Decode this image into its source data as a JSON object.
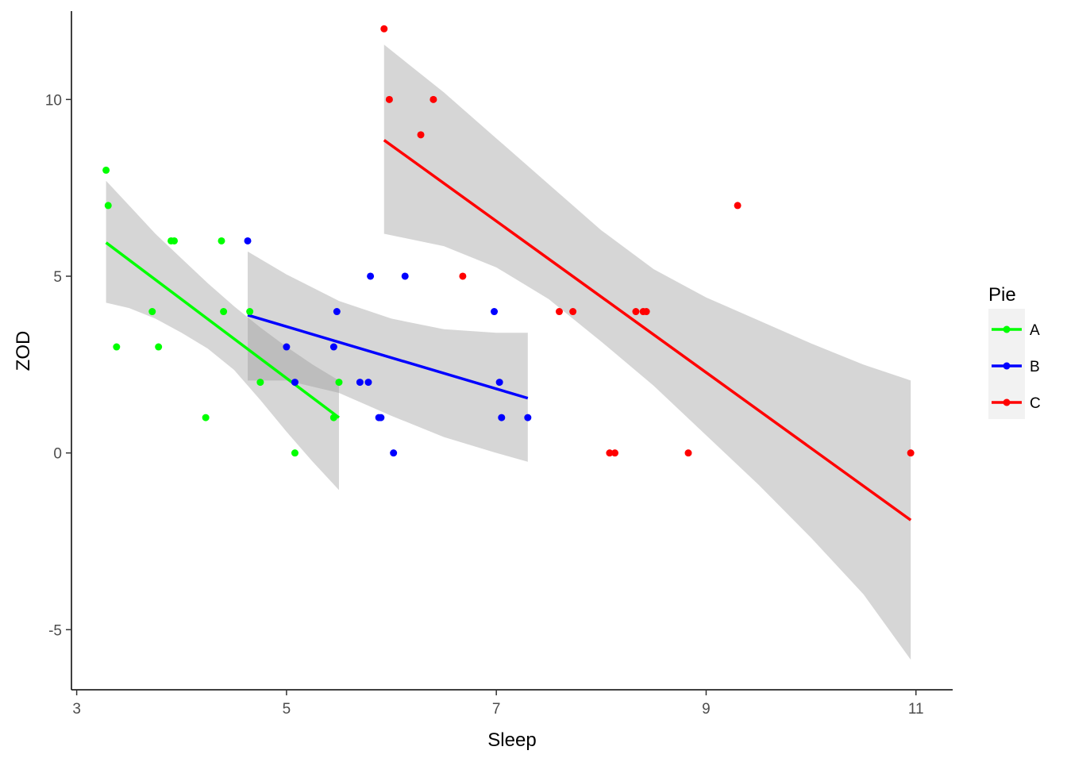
{
  "chart_data": {
    "type": "scatter",
    "title": "",
    "xlabel": "Sleep",
    "ylabel": "ZOD",
    "xlim": [
      2.95,
      11.35
    ],
    "ylim": [
      -6.7,
      12.5
    ],
    "xticks": [
      "3",
      "5",
      "7",
      "9",
      "11"
    ],
    "yticks": [
      "-5",
      "0",
      "5",
      "10"
    ],
    "grid": false,
    "legend": {
      "title": "Pie",
      "position": "right"
    },
    "smoothing": "linear fit with confidence band",
    "band_color": "#999999",
    "series": [
      {
        "name": "A",
        "color": "#00ff00",
        "points": [
          [
            3.28,
            8
          ],
          [
            3.3,
            7
          ],
          [
            3.38,
            3
          ],
          [
            3.72,
            4
          ],
          [
            3.78,
            3
          ],
          [
            3.9,
            6
          ],
          [
            3.93,
            6
          ],
          [
            4.23,
            1
          ],
          [
            4.38,
            6
          ],
          [
            4.4,
            4
          ],
          [
            4.65,
            4
          ],
          [
            4.75,
            2
          ],
          [
            5.08,
            0
          ],
          [
            5.45,
            1
          ],
          [
            5.5,
            2
          ]
        ],
        "fit": {
          "x": [
            3.28,
            5.5
          ],
          "y": [
            5.95,
            1.0
          ]
        },
        "band": {
          "x": [
            3.28,
            3.5,
            3.75,
            4.0,
            4.25,
            4.5,
            4.75,
            5.0,
            5.25,
            5.5
          ],
          "upper": [
            7.7,
            7.0,
            6.2,
            5.5,
            4.8,
            4.15,
            3.55,
            3.0,
            2.5,
            2.05
          ],
          "lower": [
            4.25,
            4.1,
            3.8,
            3.4,
            2.95,
            2.35,
            1.5,
            0.6,
            -0.25,
            -1.05
          ]
        }
      },
      {
        "name": "B",
        "color": "#0000ff",
        "points": [
          [
            4.63,
            6
          ],
          [
            5.0,
            3
          ],
          [
            5.08,
            2
          ],
          [
            5.45,
            3
          ],
          [
            5.48,
            4
          ],
          [
            5.7,
            2
          ],
          [
            5.78,
            2
          ],
          [
            5.8,
            5
          ],
          [
            5.88,
            1
          ],
          [
            5.9,
            1
          ],
          [
            6.02,
            0
          ],
          [
            6.13,
            5
          ],
          [
            6.98,
            4
          ],
          [
            7.03,
            2
          ],
          [
            7.05,
            1
          ],
          [
            7.3,
            1
          ]
        ],
        "fit": {
          "x": [
            4.63,
            7.3
          ],
          "y": [
            3.9,
            1.55
          ]
        },
        "band": {
          "x": [
            4.63,
            5.0,
            5.5,
            6.0,
            6.5,
            7.0,
            7.3
          ],
          "upper": [
            5.7,
            5.05,
            4.3,
            3.8,
            3.5,
            3.4,
            3.4
          ],
          "lower": [
            2.05,
            2.05,
            1.7,
            1.05,
            0.45,
            -0.0,
            -0.25
          ]
        }
      },
      {
        "name": "C",
        "color": "#ff0000",
        "points": [
          [
            5.93,
            12
          ],
          [
            5.98,
            10
          ],
          [
            6.28,
            9
          ],
          [
            6.4,
            10
          ],
          [
            6.68,
            5
          ],
          [
            7.6,
            4
          ],
          [
            7.73,
            4
          ],
          [
            8.08,
            0
          ],
          [
            8.13,
            0
          ],
          [
            8.33,
            4
          ],
          [
            8.4,
            4
          ],
          [
            8.43,
            4
          ],
          [
            8.83,
            0
          ],
          [
            9.3,
            7
          ],
          [
            10.95,
            0
          ]
        ],
        "fit": {
          "x": [
            5.93,
            10.95
          ],
          "y": [
            8.85,
            -1.9
          ]
        },
        "band": {
          "x": [
            5.93,
            6.5,
            7.0,
            7.5,
            8.0,
            8.5,
            9.0,
            9.5,
            10.0,
            10.5,
            10.95
          ],
          "upper": [
            11.55,
            10.2,
            8.9,
            7.6,
            6.3,
            5.2,
            4.4,
            3.75,
            3.1,
            2.5,
            2.05
          ],
          "lower": [
            6.2,
            5.85,
            5.25,
            4.35,
            3.15,
            1.9,
            0.5,
            -0.9,
            -2.4,
            -4.0,
            -5.85
          ]
        }
      }
    ]
  }
}
